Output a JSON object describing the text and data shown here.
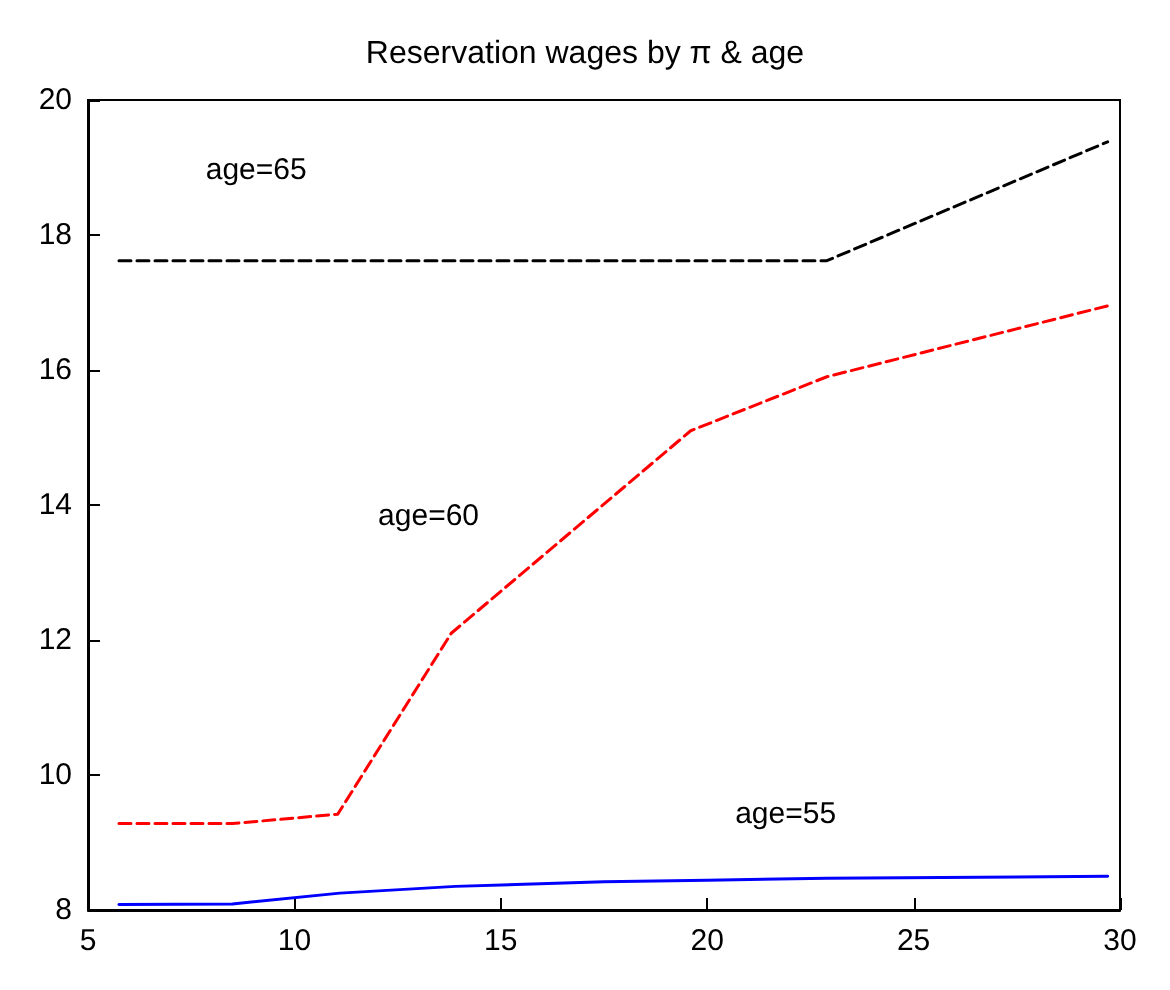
{
  "chart_data": {
    "type": "line",
    "title": "Reservation wages by π & age",
    "xlim": [
      5,
      30
    ],
    "xticks": [
      5,
      10,
      15,
      20,
      25,
      30
    ],
    "ylim": [
      8,
      20
    ],
    "yticks": [
      8,
      10,
      12,
      14,
      16,
      18,
      20
    ],
    "grid": false,
    "legend": false,
    "marker": "none",
    "series": [
      {
        "name": "age=55",
        "x": [
          5.75,
          8.5,
          11.1,
          13.9,
          17.5,
          20,
          22.9,
          29.7
        ],
        "values": [
          8.08,
          8.09,
          8.25,
          8.35,
          8.42,
          8.44,
          8.47,
          8.5
        ],
        "color": "#0000ff",
        "line_style": "solid"
      },
      {
        "name": "age=60",
        "x": [
          5.75,
          8.5,
          11.05,
          13.8,
          19.6,
          22.9,
          29.7
        ],
        "values": [
          9.28,
          9.28,
          9.42,
          12.1,
          15.1,
          15.9,
          16.95
        ],
        "color": "#ff0000",
        "line_style": "dashed"
      },
      {
        "name": "age=65",
        "x": [
          5.75,
          22.9,
          29.7
        ],
        "values": [
          17.62,
          17.62,
          19.38
        ],
        "color": "#000000",
        "line_style": "dashed"
      }
    ]
  }
}
